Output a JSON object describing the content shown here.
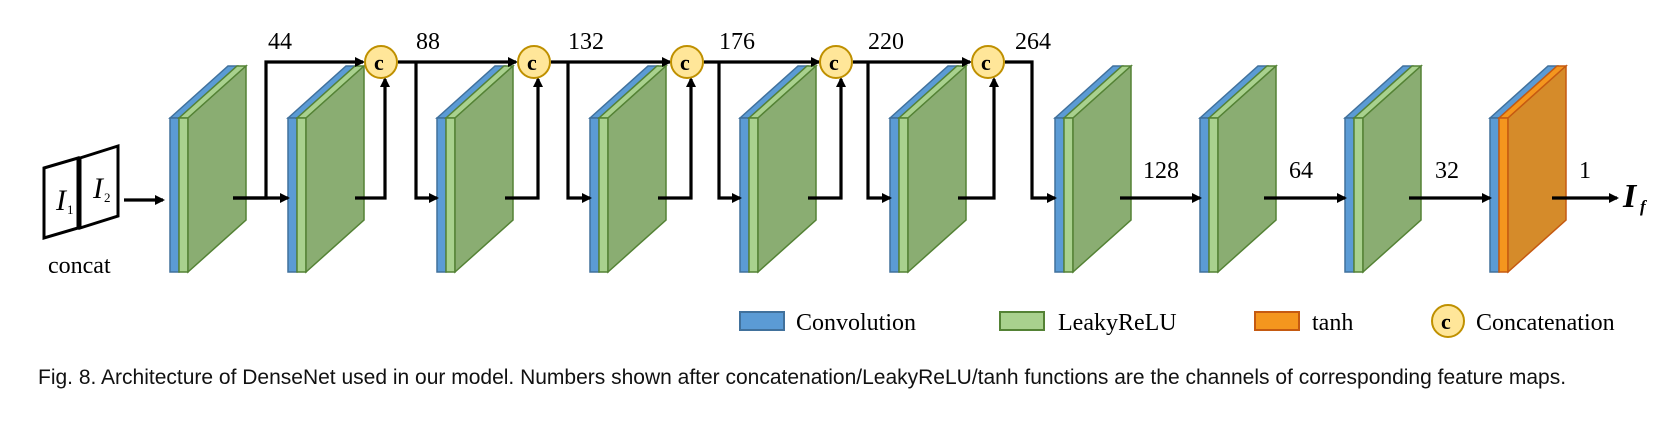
{
  "input": {
    "label": "concat",
    "glyph_1": "I",
    "sub_1": "1",
    "glyph_2": "I",
    "sub_2": "2"
  },
  "concat_symbol": "c",
  "concat_channels": [
    "44",
    "88",
    "132",
    "176",
    "220",
    "264"
  ],
  "tail_channels": [
    "128",
    "64",
    "32",
    "1"
  ],
  "output": {
    "glyph": "I",
    "sub": "f"
  },
  "legend": [
    {
      "label": "Convolution",
      "kind": "convolution",
      "color": "#5b9bd5"
    },
    {
      "label": "LeakyReLU",
      "kind": "leakyrelu",
      "color": "#a9d18e"
    },
    {
      "label": "tanh",
      "kind": "tanh",
      "color": "#f4961e"
    },
    {
      "label": "Concatenation",
      "kind": "concatenation",
      "color": "#ffe699"
    }
  ],
  "colors": {
    "conv_front": "#5b9bd5",
    "conv_dark": "#41719c",
    "relu_front": "#a9d18e",
    "relu_map": "#8aad72",
    "relu_edge": "#548235",
    "tanh_front": "#f4961e",
    "tanh_map": "#d58b2a",
    "tanh_edge": "#c55a11",
    "concat_fill": "#ffe699",
    "concat_stroke": "#bf9000"
  },
  "caption": "Fig. 8. Architecture of DenseNet used in our model. Numbers shown after concatenation/LeakyReLU/tanh functions are the channels of corresponding feature maps."
}
